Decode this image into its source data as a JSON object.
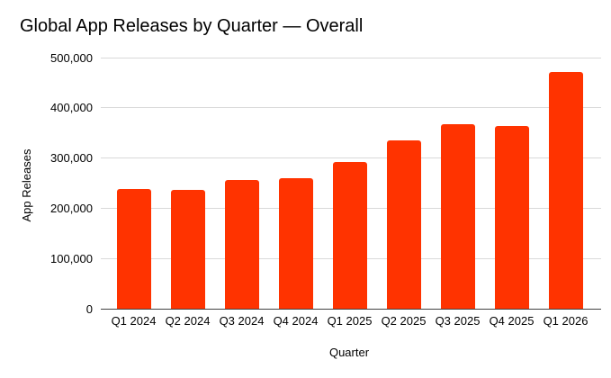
{
  "chart_data": {
    "type": "bar",
    "title": "Global App Releases by Quarter — Overall",
    "xlabel": "Quarter",
    "ylabel": "App Releases",
    "categories": [
      "Q1 2024",
      "Q2 2024",
      "Q3 2024",
      "Q4 2024",
      "Q1 2025",
      "Q2 2025",
      "Q3 2025",
      "Q4 2025",
      "Q1 2026"
    ],
    "values": [
      238000,
      236000,
      257000,
      259000,
      293000,
      335000,
      368000,
      364000,
      472000
    ],
    "ylim": [
      0,
      500000
    ],
    "ytick_values": [
      0,
      100000,
      200000,
      300000,
      400000,
      500000
    ],
    "ytick_labels": [
      "0",
      "100,000",
      "200,000",
      "300,000",
      "400,000",
      "500,000"
    ],
    "grid": true,
    "legend": "none"
  },
  "colors": {
    "bar": "#ff3300",
    "gridline": "#d9d9d9",
    "axis_line": "#424242",
    "text": "#000000",
    "background": "#ffffff"
  }
}
